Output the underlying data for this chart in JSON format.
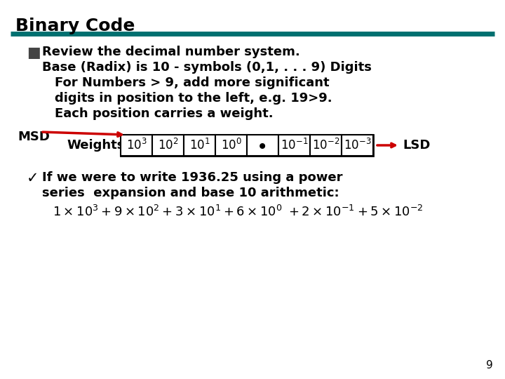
{
  "title": "Binary Code",
  "title_color": "#000000",
  "title_fontsize": 18,
  "header_line_color": "#007070",
  "bg_color": "#ffffff",
  "bullet_text1": "Review the decimal number system.",
  "bullet_text2": "Base (Radix) is 10 - symbols (0,1, . . . 9) Digits",
  "bullet_text3": "For Numbers > 9, add more significant",
  "bullet_text4": "digits in position to the left, e.g. 19>9.",
  "bullet_text5": "Each position carries a weight.",
  "weights_label": "Weights:",
  "msd_label": "MSD",
  "lsd_label": "LSD",
  "check_text1": "If we were to write 1936.25 using a power",
  "check_text2": "series  expansion and base 10 arithmetic:",
  "page_num": "9",
  "arrow_color": "#cc0000",
  "body_fontsize": 13,
  "formula_fontsize": 13
}
